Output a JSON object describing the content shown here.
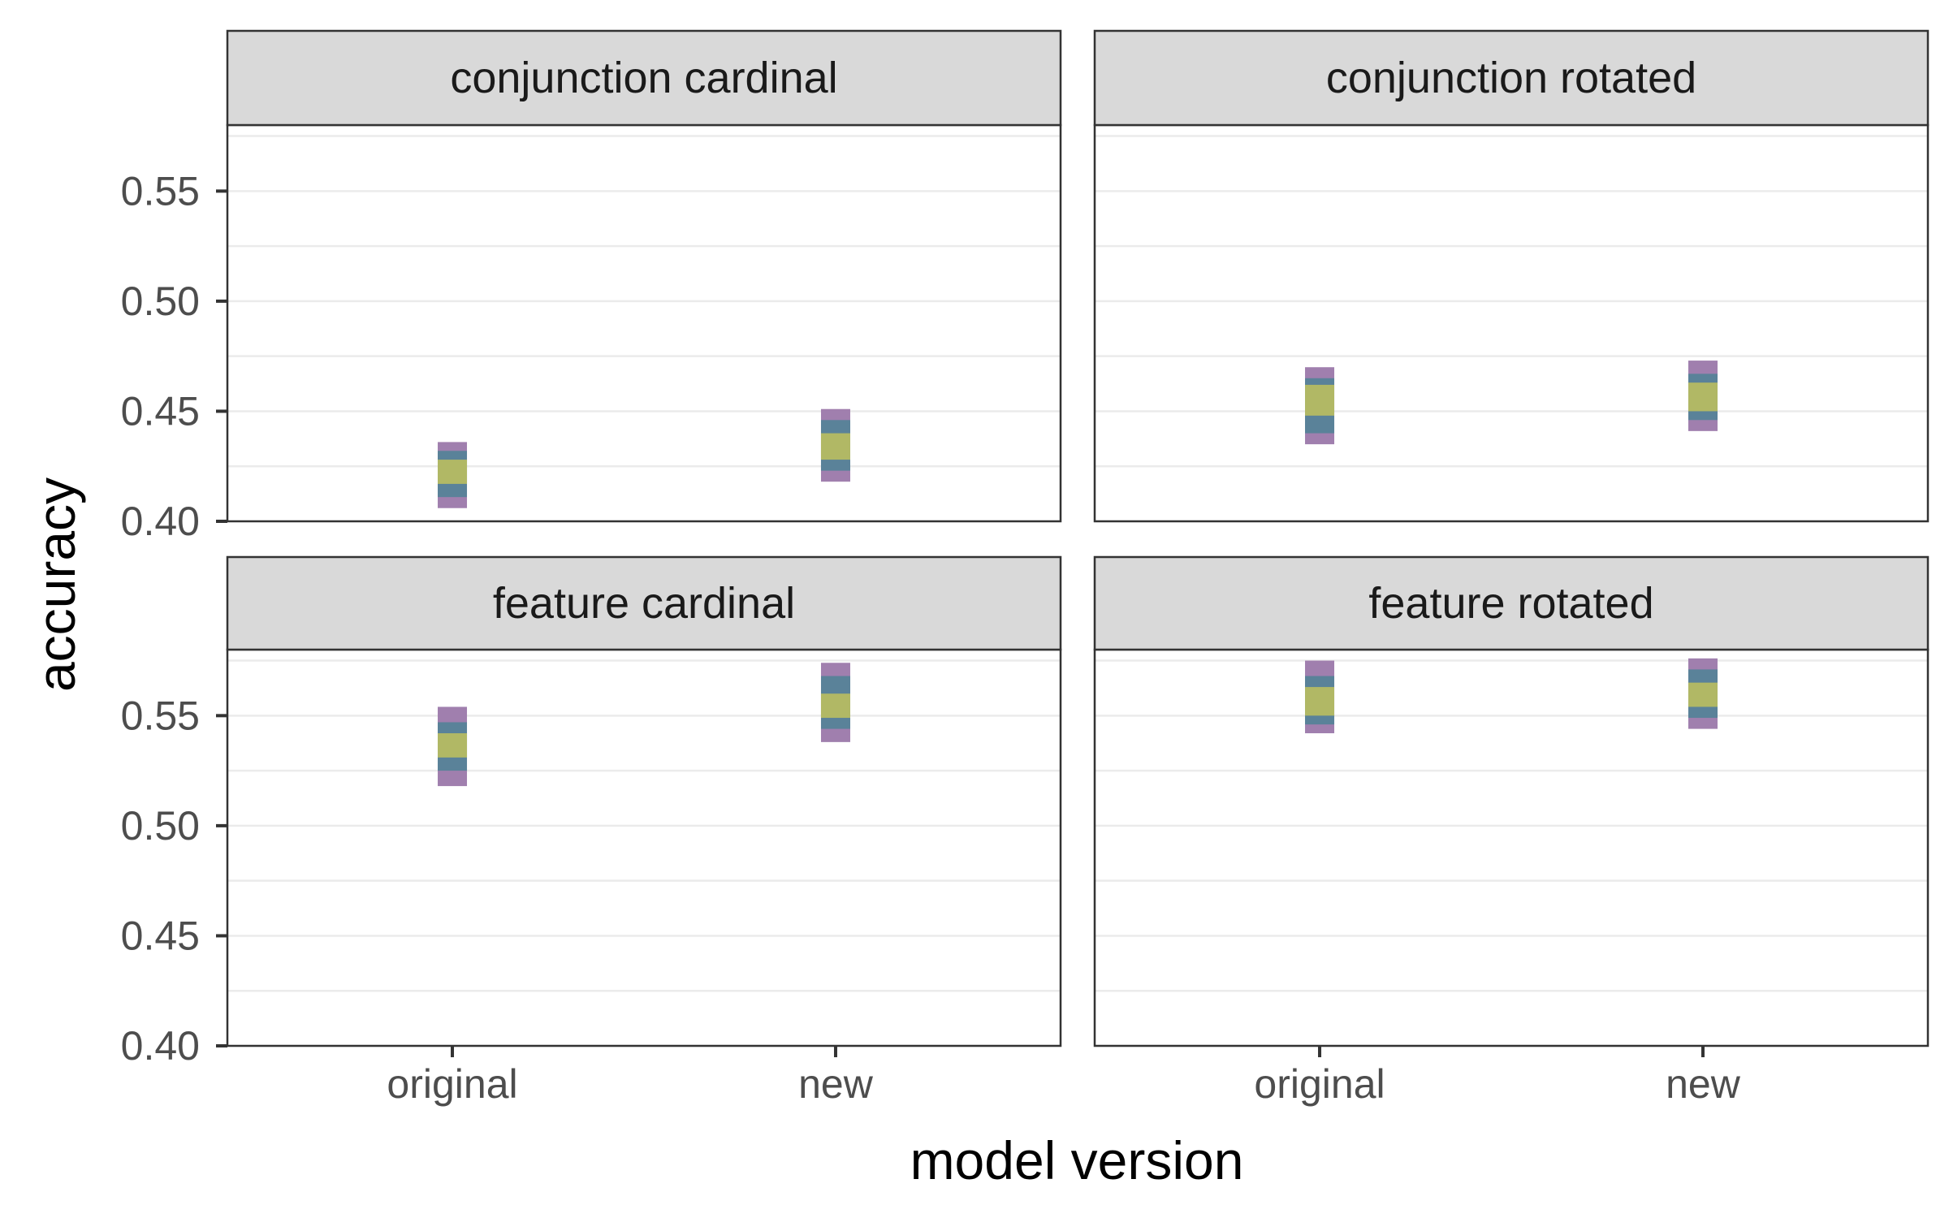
{
  "chart_data": {
    "type": "interval",
    "facet_layout": "2x2 grid",
    "xlabel": "model version",
    "ylabel": "accuracy",
    "categories": [
      "original",
      "new"
    ],
    "ylim": [
      0.4,
      0.58
    ],
    "yticks": [
      0.4,
      0.45,
      0.5,
      0.55
    ],
    "grid": true,
    "band_colors": {
      "outer": "#a07fae",
      "middle": "#5a8299",
      "inner": "#b1b865"
    },
    "panels": [
      {
        "title": "conjunction cardinal",
        "intervals": [
          {
            "category": "original",
            "bands": [
              [
                0.406,
                0.436
              ],
              [
                0.411,
                0.432
              ],
              [
                0.417,
                0.428
              ]
            ]
          },
          {
            "category": "new",
            "bands": [
              [
                0.418,
                0.451
              ],
              [
                0.423,
                0.446
              ],
              [
                0.428,
                0.44
              ]
            ]
          }
        ]
      },
      {
        "title": "conjunction rotated",
        "intervals": [
          {
            "category": "original",
            "bands": [
              [
                0.435,
                0.47
              ],
              [
                0.44,
                0.465
              ],
              [
                0.448,
                0.462
              ]
            ]
          },
          {
            "category": "new",
            "bands": [
              [
                0.441,
                0.473
              ],
              [
                0.446,
                0.467
              ],
              [
                0.45,
                0.463
              ]
            ]
          }
        ]
      },
      {
        "title": "feature cardinal",
        "intervals": [
          {
            "category": "original",
            "bands": [
              [
                0.518,
                0.554
              ],
              [
                0.525,
                0.547
              ],
              [
                0.531,
                0.542
              ]
            ]
          },
          {
            "category": "new",
            "bands": [
              [
                0.538,
                0.574
              ],
              [
                0.544,
                0.568
              ],
              [
                0.549,
                0.56
              ]
            ]
          }
        ]
      },
      {
        "title": "feature rotated",
        "intervals": [
          {
            "category": "original",
            "bands": [
              [
                0.542,
                0.575
              ],
              [
                0.546,
                0.568
              ],
              [
                0.55,
                0.563
              ]
            ]
          },
          {
            "category": "new",
            "bands": [
              [
                0.544,
                0.576
              ],
              [
                0.549,
                0.571
              ],
              [
                0.554,
                0.565
              ]
            ]
          }
        ]
      }
    ]
  }
}
